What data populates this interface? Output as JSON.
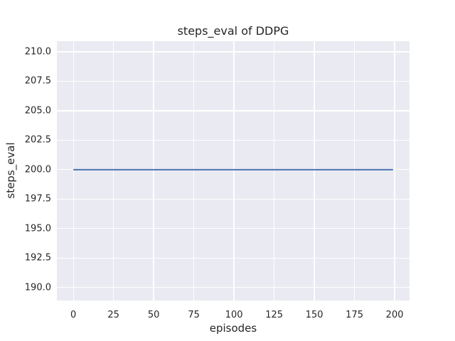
{
  "chart_data": {
    "type": "line",
    "title": "steps_eval of DDPG",
    "xlabel": "episodes",
    "ylabel": "steps_eval",
    "xlim": [
      -10.25,
      209.25
    ],
    "ylim": [
      188.9,
      210.9
    ],
    "grid": true,
    "legend": false,
    "plot_background": "#eaeaf2",
    "grid_color": "#ffffff",
    "text_color": "#262626",
    "xticks": [
      {
        "value": 0,
        "label": "0"
      },
      {
        "value": 25,
        "label": "25"
      },
      {
        "value": 50,
        "label": "50"
      },
      {
        "value": 75,
        "label": "75"
      },
      {
        "value": 100,
        "label": "100"
      },
      {
        "value": 125,
        "label": "125"
      },
      {
        "value": 150,
        "label": "150"
      },
      {
        "value": 175,
        "label": "175"
      },
      {
        "value": 200,
        "label": "200"
      }
    ],
    "yticks": [
      {
        "value": 190.0,
        "label": "190.0"
      },
      {
        "value": 192.5,
        "label": "192.5"
      },
      {
        "value": 195.0,
        "label": "195.0"
      },
      {
        "value": 197.5,
        "label": "197.5"
      },
      {
        "value": 200.0,
        "label": "200.0"
      },
      {
        "value": 202.5,
        "label": "202.5"
      },
      {
        "value": 205.0,
        "label": "205.0"
      },
      {
        "value": 207.5,
        "label": "207.5"
      },
      {
        "value": 210.0,
        "label": "210.0"
      }
    ],
    "series": [
      {
        "name": "steps_eval",
        "color": "#4c72b0",
        "line_width": 2,
        "constant_y": 200,
        "x_start": 0,
        "x_end": 199,
        "points": [
          [
            0,
            200
          ],
          [
            199,
            200
          ]
        ]
      }
    ]
  }
}
